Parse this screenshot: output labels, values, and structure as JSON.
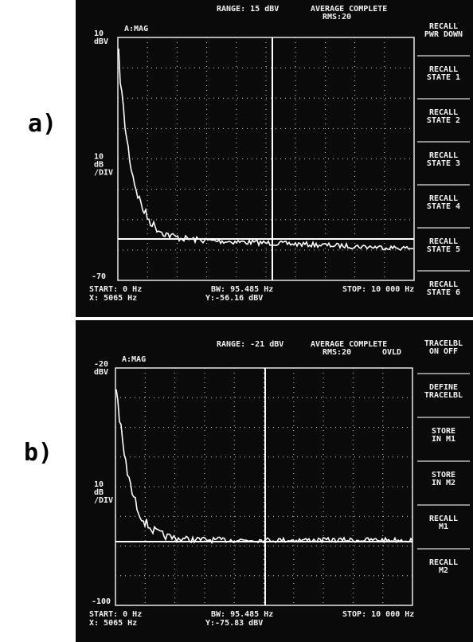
{
  "panels": [
    {
      "label": "a)",
      "range": "RANGE: 15 dBV",
      "status": "AVERAGE COMPLETE",
      "rms": "RMS:20",
      "marker": "A:MAG",
      "top_ref": [
        "10",
        "dBV"
      ],
      "scale": [
        "10",
        "dB",
        "/DIV"
      ],
      "bottom_ref": "-70",
      "start": "START: 0 Hz",
      "x_readout": "X: 5065 Hz",
      "bw": "BW: 95.485 Hz",
      "y_readout": "Y:-56.16 dBV",
      "stop": "STOP: 10 000 Hz",
      "softkeys": [
        [
          "RECALL",
          "PWR DOWN"
        ],
        [
          "RECALL",
          "STATE 1"
        ],
        [
          "RECALL",
          "STATE 2"
        ],
        [
          "RECALL",
          "STATE 3"
        ],
        [
          "RECALL",
          "STATE 4"
        ],
        [
          "RECALL",
          "STATE 5"
        ],
        [
          "RECALL",
          "STATE 6"
        ]
      ]
    },
    {
      "label": "b)",
      "range": "RANGE: -21 dBV",
      "status": "AVERAGE COMPLETE",
      "rms": "RMS:20",
      "ovld": "OVLD",
      "marker": "A:MAG",
      "top_ref": [
        "-20",
        "dBV"
      ],
      "scale": [
        "10",
        "dB",
        "/DIV"
      ],
      "bottom_ref": "-100",
      "start": "START: 0 Hz",
      "x_readout": "X: 5065 Hz",
      "bw": "BW: 95.485 Hz",
      "y_readout": "Y:-75.83 dBV",
      "stop": "STOP: 10 000 Hz",
      "softkeys": [
        [
          "TRACELBL",
          "ON  OFF"
        ],
        [
          "DEFINE",
          "TRACELBL"
        ],
        [
          "STORE",
          "IN M1"
        ],
        [
          "STORE",
          "IN M2"
        ],
        [
          "RECALL",
          "M1"
        ],
        [
          "RECALL",
          "M2"
        ]
      ]
    }
  ]
}
